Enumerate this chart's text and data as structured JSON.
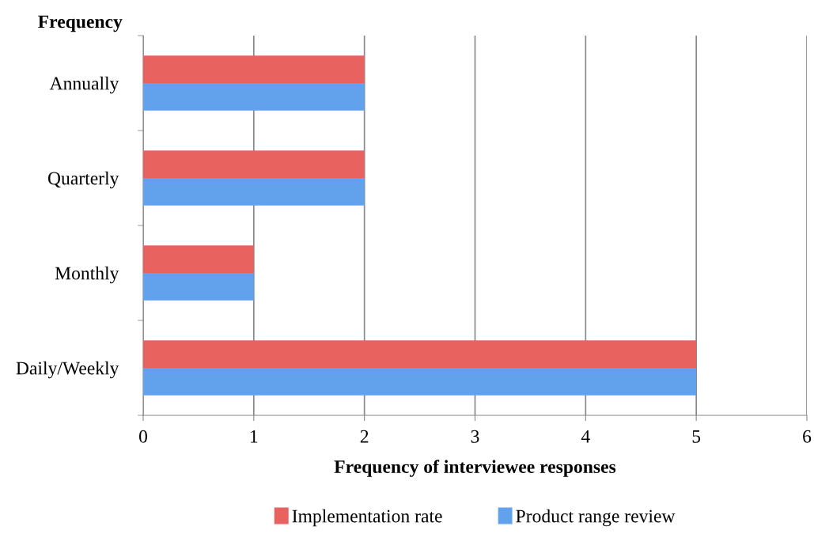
{
  "chart_data": {
    "type": "bar",
    "orientation": "horizontal",
    "xlabel": "Frequency of interviewee responses",
    "ylabel": "Frequency",
    "categories": [
      "Annually",
      "Quarterly",
      "Monthly",
      "Daily/Weekly"
    ],
    "series": [
      {
        "name": "Implementation rate",
        "color": "#e8625f",
        "values": [
          2,
          2,
          1,
          5
        ]
      },
      {
        "name": "Product range review",
        "color": "#62a2ec",
        "values": [
          2,
          2,
          1,
          5
        ]
      }
    ],
    "xlim": [
      0,
      6
    ],
    "xticks": [
      0,
      1,
      2,
      3,
      4,
      5,
      6
    ],
    "grid": "x",
    "legend": "bottom"
  }
}
